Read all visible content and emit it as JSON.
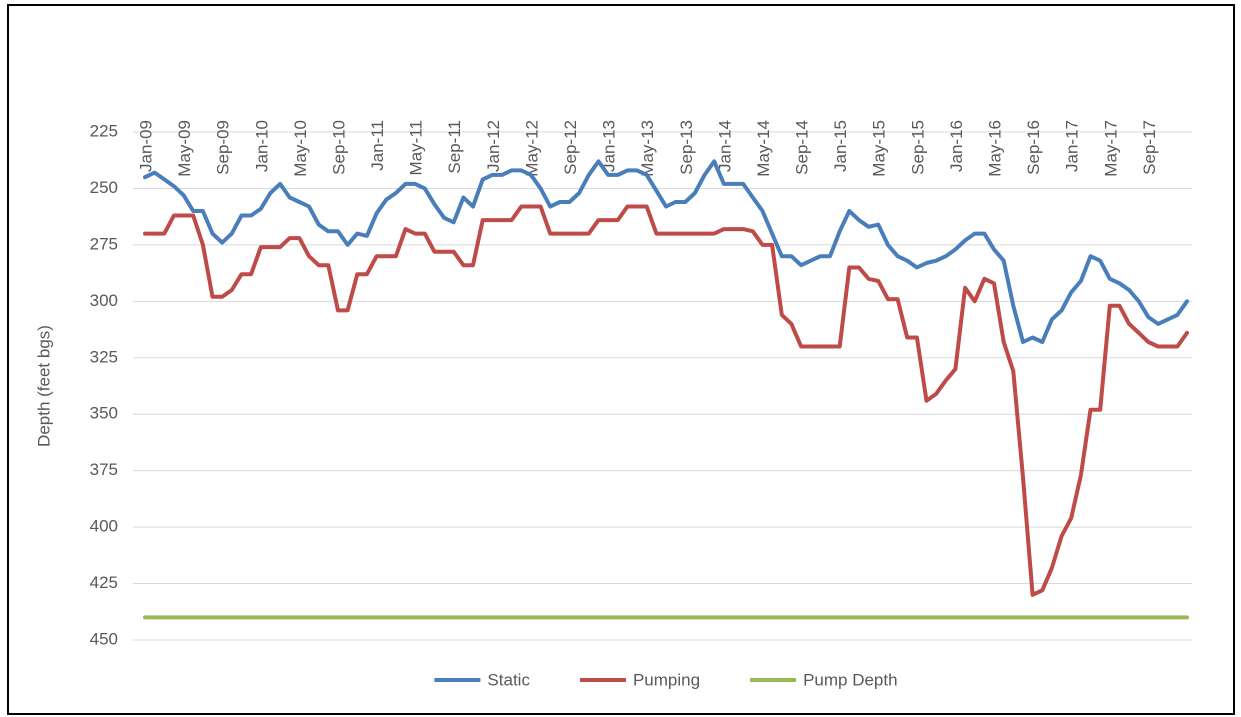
{
  "chart_data": {
    "type": "line",
    "y_label": "Depth (feet bgs)",
    "categories": [
      "Jan-09",
      null,
      null,
      null,
      "May-09",
      null,
      null,
      null,
      "Sep-09",
      null,
      null,
      null,
      "Jan-10",
      null,
      null,
      null,
      "May-10",
      null,
      null,
      null,
      "Sep-10",
      null,
      null,
      null,
      "Jan-11",
      null,
      null,
      null,
      "May-11",
      null,
      null,
      null,
      "Sep-11",
      null,
      null,
      null,
      "Jan-12",
      null,
      null,
      null,
      "May-12",
      null,
      null,
      null,
      "Sep-12",
      null,
      null,
      null,
      "Jan-13",
      null,
      null,
      null,
      "May-13",
      null,
      null,
      null,
      "Sep-13",
      null,
      null,
      null,
      "Jan-14",
      null,
      null,
      null,
      "May-14",
      null,
      null,
      null,
      "Sep-14",
      null,
      null,
      null,
      "Jan-15",
      null,
      null,
      null,
      "May-15",
      null,
      null,
      null,
      "Sep-15",
      null,
      null,
      null,
      "Jan-16",
      null,
      null,
      null,
      "May-16",
      null,
      null,
      null,
      "Sep-16",
      null,
      null,
      null,
      "Jan-17",
      null,
      null,
      null,
      "May-17",
      null,
      null,
      null,
      "Sep-17",
      null,
      null,
      null,
      null
    ],
    "series": [
      {
        "name": "Static",
        "color": "#4a7ebb",
        "values": [
          245,
          243,
          246,
          249,
          253,
          260,
          260,
          270,
          274,
          270,
          262,
          262,
          259,
          252,
          248,
          254,
          256,
          258,
          266,
          269,
          269,
          275,
          270,
          271,
          261,
          255,
          252,
          248,
          248,
          250,
          257,
          263,
          265,
          254,
          258,
          246,
          244,
          244,
          242,
          242,
          244,
          250,
          258,
          256,
          256,
          252,
          244,
          238,
          244,
          244,
          242,
          242,
          244,
          251,
          258,
          256,
          256,
          252,
          244,
          238,
          248,
          248,
          248,
          254,
          260,
          270,
          280,
          280,
          284,
          282,
          280,
          280,
          269,
          260,
          264,
          267,
          266,
          275,
          280,
          282,
          285,
          283,
          282,
          280,
          277,
          273,
          270,
          270,
          277,
          282,
          302,
          318,
          316,
          318,
          308,
          304,
          296,
          291,
          280,
          282,
          290,
          292,
          295,
          300,
          307,
          310,
          308,
          306,
          300
        ]
      },
      {
        "name": "Pumping",
        "color": "#be4b48",
        "values": [
          270,
          270,
          270,
          262,
          262,
          262,
          275,
          298,
          298,
          295,
          288,
          288,
          276,
          276,
          276,
          272,
          272,
          280,
          284,
          284,
          304,
          304,
          288,
          288,
          280,
          280,
          280,
          268,
          270,
          270,
          278,
          278,
          278,
          284,
          284,
          264,
          264,
          264,
          264,
          258,
          258,
          258,
          270,
          270,
          270,
          270,
          270,
          264,
          264,
          264,
          258,
          258,
          258,
          270,
          270,
          270,
          270,
          270,
          270,
          270,
          268,
          268,
          268,
          269,
          275,
          275,
          306,
          310,
          320,
          320,
          320,
          320,
          320,
          285,
          285,
          290,
          291,
          299,
          299,
          316,
          316,
          344,
          341,
          335,
          330,
          294,
          300,
          290,
          292,
          318,
          331,
          378,
          430,
          428,
          418,
          404,
          396,
          377,
          348,
          348,
          302,
          302,
          310,
          314,
          318,
          320,
          320,
          320,
          314
        ]
      },
      {
        "name": "Pump Depth",
        "color": "#98b954",
        "values": [
          440,
          440,
          440,
          440,
          440,
          440,
          440,
          440,
          440,
          440,
          440,
          440,
          440,
          440,
          440,
          440,
          440,
          440,
          440,
          440,
          440,
          440,
          440,
          440,
          440,
          440,
          440,
          440,
          440,
          440,
          440,
          440,
          440,
          440,
          440,
          440,
          440,
          440,
          440,
          440,
          440,
          440,
          440,
          440,
          440,
          440,
          440,
          440,
          440,
          440,
          440,
          440,
          440,
          440,
          440,
          440,
          440,
          440,
          440,
          440,
          440,
          440,
          440,
          440,
          440,
          440,
          440,
          440,
          440,
          440,
          440,
          440,
          440,
          440,
          440,
          440,
          440,
          440,
          440,
          440,
          440,
          440,
          440,
          440,
          440,
          440,
          440,
          440,
          440,
          440,
          440,
          440,
          440,
          440,
          440,
          440,
          440,
          440,
          440,
          440,
          440,
          440,
          440,
          440,
          440,
          440,
          440,
          440,
          440
        ]
      }
    ],
    "ylim": [
      225,
      450
    ],
    "yticks": [
      225,
      250,
      275,
      300,
      325,
      350,
      375,
      400,
      425,
      450
    ],
    "y_reversed": true,
    "grid": true,
    "legend": "bottom"
  }
}
